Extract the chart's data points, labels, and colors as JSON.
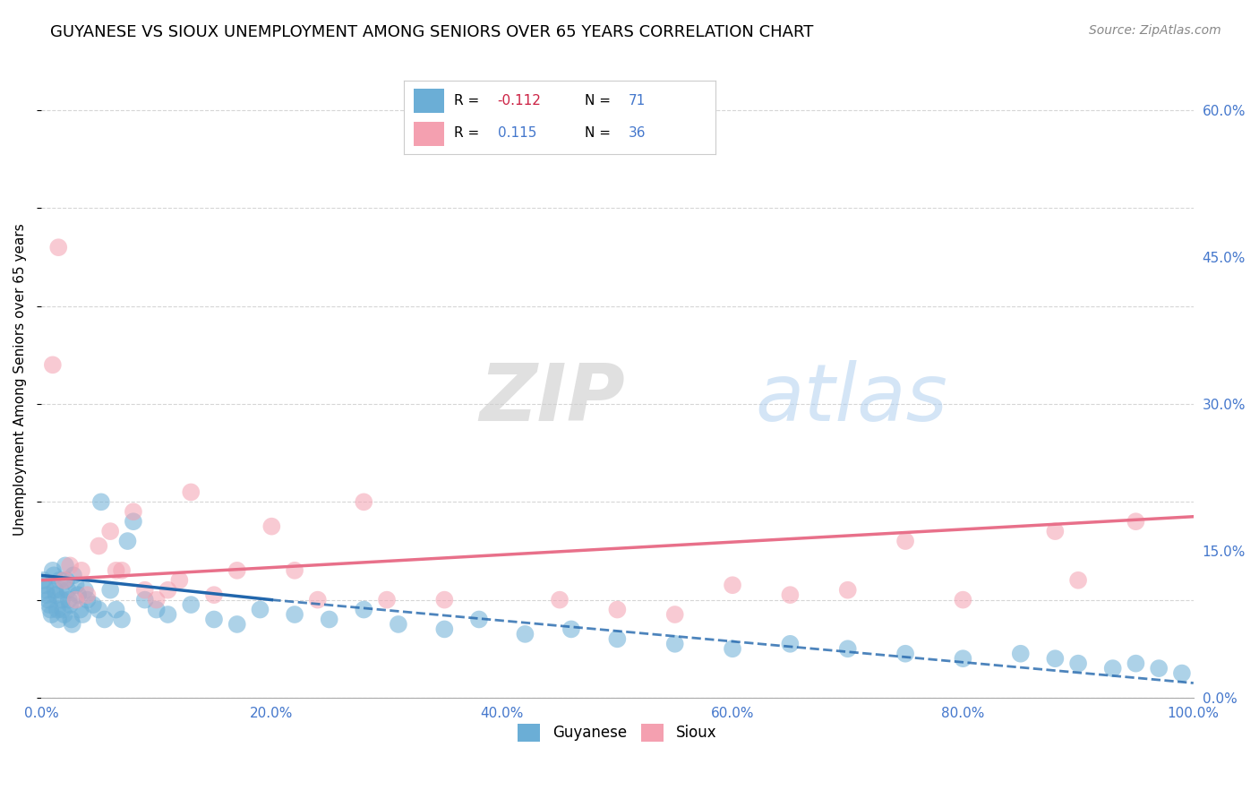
{
  "title": "GUYANESE VS SIOUX UNEMPLOYMENT AMONG SENIORS OVER 65 YEARS CORRELATION CHART",
  "source": "Source: ZipAtlas.com",
  "ylabel": "Unemployment Among Seniors over 65 years",
  "xlim": [
    0,
    100
  ],
  "ylim": [
    0,
    65
  ],
  "xticks": [
    0,
    20,
    40,
    60,
    80,
    100
  ],
  "xticklabels": [
    "0.0%",
    "20.0%",
    "40.0%",
    "60.0%",
    "80.0%",
    "100.0%"
  ],
  "yticks_right": [
    0,
    15,
    30,
    45,
    60
  ],
  "yticklabels_right": [
    "0.0%",
    "15.0%",
    "30.0%",
    "45.0%",
    "60.0%"
  ],
  "guyanese_color": "#6baed6",
  "sioux_color": "#f4a0b0",
  "guyanese_line_color": "#2166ac",
  "sioux_line_color": "#e8708a",
  "background_color": "#ffffff",
  "grid_color": "#cccccc",
  "title_fontsize": 13,
  "watermark": "ZIPatlas",
  "guyanese_x": [
    0.2,
    0.3,
    0.4,
    0.5,
    0.6,
    0.7,
    0.8,
    0.9,
    1.0,
    1.1,
    1.2,
    1.3,
    1.4,
    1.5,
    1.6,
    1.7,
    1.8,
    1.9,
    2.0,
    2.1,
    2.2,
    2.3,
    2.4,
    2.5,
    2.6,
    2.7,
    2.8,
    3.0,
    3.2,
    3.4,
    3.6,
    4.0,
    4.5,
    5.0,
    5.5,
    6.0,
    6.5,
    7.0,
    7.5,
    8.0,
    3.8,
    5.2,
    9.0,
    10.0,
    11.0,
    13.0,
    15.0,
    17.0,
    19.0,
    22.0,
    25.0,
    28.0,
    31.0,
    35.0,
    38.0,
    42.0,
    46.0,
    50.0,
    55.0,
    60.0,
    65.0,
    70.0,
    75.0,
    80.0,
    85.0,
    88.0,
    90.0,
    93.0,
    95.0,
    97.0,
    99.0
  ],
  "guyanese_y": [
    12.0,
    11.5,
    11.0,
    10.5,
    10.0,
    9.5,
    9.0,
    8.5,
    13.0,
    12.5,
    11.0,
    10.5,
    9.0,
    8.0,
    12.0,
    11.0,
    10.0,
    9.0,
    8.5,
    13.5,
    12.0,
    11.0,
    10.0,
    9.5,
    8.0,
    7.5,
    12.5,
    11.5,
    10.5,
    9.0,
    8.5,
    10.0,
    9.5,
    9.0,
    8.0,
    11.0,
    9.0,
    8.0,
    16.0,
    18.0,
    11.0,
    20.0,
    10.0,
    9.0,
    8.5,
    9.5,
    8.0,
    7.5,
    9.0,
    8.5,
    8.0,
    9.0,
    7.5,
    7.0,
    8.0,
    6.5,
    7.0,
    6.0,
    5.5,
    5.0,
    5.5,
    5.0,
    4.5,
    4.0,
    4.5,
    4.0,
    3.5,
    3.0,
    3.5,
    3.0,
    2.5
  ],
  "sioux_x": [
    1.0,
    1.5,
    2.0,
    2.5,
    3.0,
    4.0,
    5.0,
    6.0,
    7.0,
    8.0,
    9.0,
    10.0,
    11.0,
    13.0,
    15.0,
    17.0,
    20.0,
    24.0,
    28.0,
    35.0,
    45.0,
    55.0,
    65.0,
    70.0,
    80.0,
    88.0,
    95.0,
    3.5,
    6.5,
    12.0,
    22.0,
    30.0,
    50.0,
    60.0,
    75.0,
    90.0
  ],
  "sioux_y": [
    34.0,
    46.0,
    12.0,
    13.5,
    10.0,
    10.5,
    15.5,
    17.0,
    13.0,
    19.0,
    11.0,
    10.0,
    11.0,
    21.0,
    10.5,
    13.0,
    17.5,
    10.0,
    20.0,
    10.0,
    10.0,
    8.5,
    10.5,
    11.0,
    10.0,
    17.0,
    18.0,
    13.0,
    13.0,
    12.0,
    13.0,
    10.0,
    9.0,
    11.5,
    16.0,
    12.0
  ],
  "guyanese_trend_start_x": 0,
  "guyanese_trend_start_y": 12.5,
  "guyanese_solid_end_x": 20,
  "guyanese_solid_end_y": 10.0,
  "guyanese_dashed_end_x": 100,
  "guyanese_dashed_end_y": 1.5,
  "sioux_trend_start_x": 0,
  "sioux_trend_start_y": 12.0,
  "sioux_trend_end_x": 100,
  "sioux_trend_end_y": 18.5
}
